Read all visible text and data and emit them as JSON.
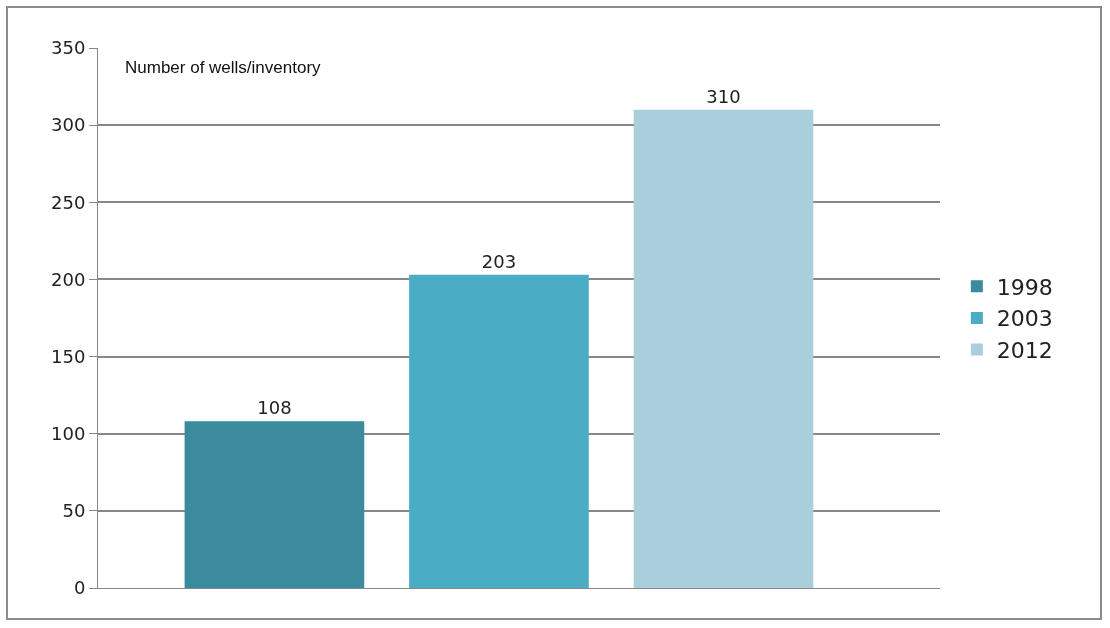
{
  "chart_data": {
    "type": "bar",
    "ylabel": "Number of wells/inventory",
    "categories": [
      null
    ],
    "series": [
      {
        "name": "1998",
        "color": "#3b8a9e",
        "values": [
          108
        ]
      },
      {
        "name": "2003",
        "color": "#4bacc6",
        "values": [
          203
        ]
      },
      {
        "name": "2012",
        "color": "#a9cfdc",
        "values": [
          310
        ]
      }
    ],
    "ylim": [
      0,
      350
    ],
    "yticks": [
      0,
      50,
      100,
      150,
      200,
      250,
      300,
      350
    ],
    "grid": "y",
    "legend": "right",
    "data_labels": true,
    "tick_labels": "y"
  }
}
